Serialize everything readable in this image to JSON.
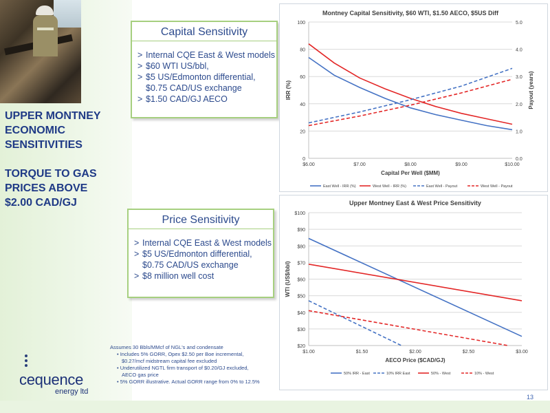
{
  "headline": {
    "lines": [
      "UPPER MONTNEY",
      "ECONOMIC",
      "SENSITIVITIES",
      "",
      "TORQUE TO GAS",
      "PRICES ABOVE",
      "$2.00 CAD/GJ"
    ]
  },
  "capital_box": {
    "title": "Capital Sensitivity",
    "bullets": [
      {
        "text": "Internal CQE East & West models"
      },
      {
        "text": "$60 WTI US/bbl,"
      },
      {
        "text": "$5 US/Edmonton differential,",
        "cont": "$0.75 CAD/US exchange"
      },
      {
        "text": "$1.50 CAD/GJ AECO"
      }
    ]
  },
  "price_box": {
    "title": "Price Sensitivity",
    "bullets": [
      {
        "text": "Internal CQE East & West models"
      },
      {
        "text": "$5 US/Edmonton differential,",
        "cont": "$0.75 CAD/US exchange"
      },
      {
        "text": "$8 million well cost"
      }
    ]
  },
  "bullet_glyph": ">",
  "notes": {
    "intro": "Assumes 30 Bbls/MMcf of NGL's and condensate",
    "items": [
      {
        "line1": "Includes 5% GORR, Opex $2.50 per Boe incremental,",
        "line2": "$0.27/mcf midstream capital fee excluded"
      },
      {
        "line1": "Underutilized NGTL firm transport of $0.20/GJ excluded,",
        "line2": "AECO gas price"
      },
      {
        "line1": "5% GORR illustrative.   Actual GORR range from 0% to 12.5%",
        "line2": ""
      }
    ]
  },
  "logo": {
    "word": "cequence",
    "sub": "energy ltd"
  },
  "page_number": "13",
  "colors": {
    "blue": "#4472c4",
    "red": "#e32626",
    "navy": "#1f3a86",
    "green_border": "#a6cf7f"
  },
  "chart_data": [
    {
      "type": "line",
      "title": "Montney Capital Sensitivity, $60 WTI, $1.50 AECO, $5US Diff",
      "xlabel": "Capital Per Well ($MM)",
      "ylabel": "IRR (%)",
      "y2label": "Payout (years)",
      "xlim": [
        6,
        10
      ],
      "ylim": [
        0,
        100
      ],
      "y2lim": [
        0,
        5
      ],
      "xticks": [
        6,
        7,
        8,
        9,
        10
      ],
      "xtick_labels": [
        "$6.00",
        "$7.00",
        "$8.00",
        "$9.00",
        "$10.00"
      ],
      "yticks": [
        0,
        20,
        40,
        60,
        80,
        100
      ],
      "ytick_labels": [
        "0",
        "20",
        "40",
        "60",
        "80",
        "100"
      ],
      "y2ticks": [
        0,
        1,
        2,
        3,
        4,
        5
      ],
      "y2tick_labels": [
        "0.0",
        "1.0",
        "2.0",
        "3.0",
        "4.0",
        "5.0"
      ],
      "grid": true,
      "legend": "bottom",
      "series": [
        {
          "name": "East Well - IRR (%)",
          "axis": "left",
          "color": "#4472c4",
          "dash": false,
          "x": [
            6,
            6.5,
            7,
            7.5,
            8,
            8.5,
            9,
            9.5,
            10
          ],
          "values": [
            74,
            61,
            52,
            44,
            37,
            32,
            28,
            24,
            21
          ]
        },
        {
          "name": "West Well - IRR (%)",
          "axis": "left",
          "color": "#e32626",
          "dash": false,
          "x": [
            6,
            6.5,
            7,
            7.5,
            8,
            8.5,
            9,
            9.5,
            10
          ],
          "values": [
            84,
            70,
            59,
            51,
            44,
            38,
            33,
            29,
            25
          ]
        },
        {
          "name": "East Well - Payout",
          "axis": "right",
          "color": "#4472c4",
          "dash": true,
          "x": [
            6,
            7,
            8,
            9,
            10
          ],
          "values": [
            1.3,
            1.7,
            2.15,
            2.65,
            3.3
          ]
        },
        {
          "name": "West Well - Payout",
          "axis": "right",
          "color": "#e32626",
          "dash": true,
          "x": [
            6,
            7,
            8,
            9,
            10
          ],
          "values": [
            1.2,
            1.55,
            1.95,
            2.4,
            2.9
          ]
        }
      ]
    },
    {
      "type": "line",
      "title": "Upper Montney East & West Price Sensitivity",
      "xlabel": "AECO Price ($CAD/GJ)",
      "ylabel": "WTI (US$/bbl)",
      "xlim": [
        1,
        3
      ],
      "ylim": [
        20,
        100
      ],
      "xticks": [
        1,
        1.5,
        2,
        2.5,
        3
      ],
      "xtick_labels": [
        "$1.00",
        "$1.50",
        "$2.00",
        "$2.50",
        "$3.00"
      ],
      "yticks": [
        20,
        30,
        40,
        50,
        60,
        70,
        80,
        90,
        100
      ],
      "ytick_labels": [
        "$20",
        "$30",
        "$40",
        "$50",
        "$60",
        "$70",
        "$80",
        "$90",
        "$100"
      ],
      "grid": true,
      "legend": "bottom",
      "series": [
        {
          "name": "50% IRR - East",
          "color": "#4472c4",
          "dash": false,
          "x": [
            1,
            3
          ],
          "values": [
            84.5,
            25.5
          ]
        },
        {
          "name": "10% IRR East",
          "color": "#4472c4",
          "dash": true,
          "x": [
            1,
            1.87
          ],
          "values": [
            47,
            20
          ]
        },
        {
          "name": "50% - West",
          "color": "#e32626",
          "dash": false,
          "x": [
            1,
            3
          ],
          "values": [
            69,
            47
          ]
        },
        {
          "name": "10% - West",
          "color": "#e32626",
          "dash": true,
          "x": [
            1,
            2.87
          ],
          "values": [
            41,
            20
          ]
        }
      ]
    }
  ]
}
